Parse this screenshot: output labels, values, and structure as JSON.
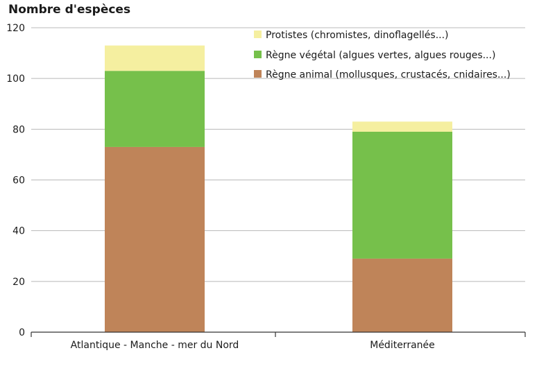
{
  "chart_data": {
    "type": "bar",
    "stacked": true,
    "ylabel": "Nombre d'espèces",
    "xlabel": "",
    "ylim": [
      0,
      120
    ],
    "yticks": [
      0,
      20,
      40,
      60,
      80,
      100,
      120
    ],
    "grid": true,
    "legend_position": "top-right",
    "categories": [
      "Atlantique - Manche - mer du Nord",
      "Méditerranée"
    ],
    "series": [
      {
        "name": "Règne animal (mollusques, crustacés, cnidaires...)",
        "values": [
          73,
          29
        ],
        "color": "#bf8459"
      },
      {
        "name": "Règne végétal (algues vertes, algues rouges...)",
        "values": [
          30,
          50
        ],
        "color": "#76c04b"
      },
      {
        "name": "Protistes (chromistes, dinoflagellés...)",
        "values": [
          10,
          4
        ],
        "color": "#f5efa0"
      }
    ]
  }
}
